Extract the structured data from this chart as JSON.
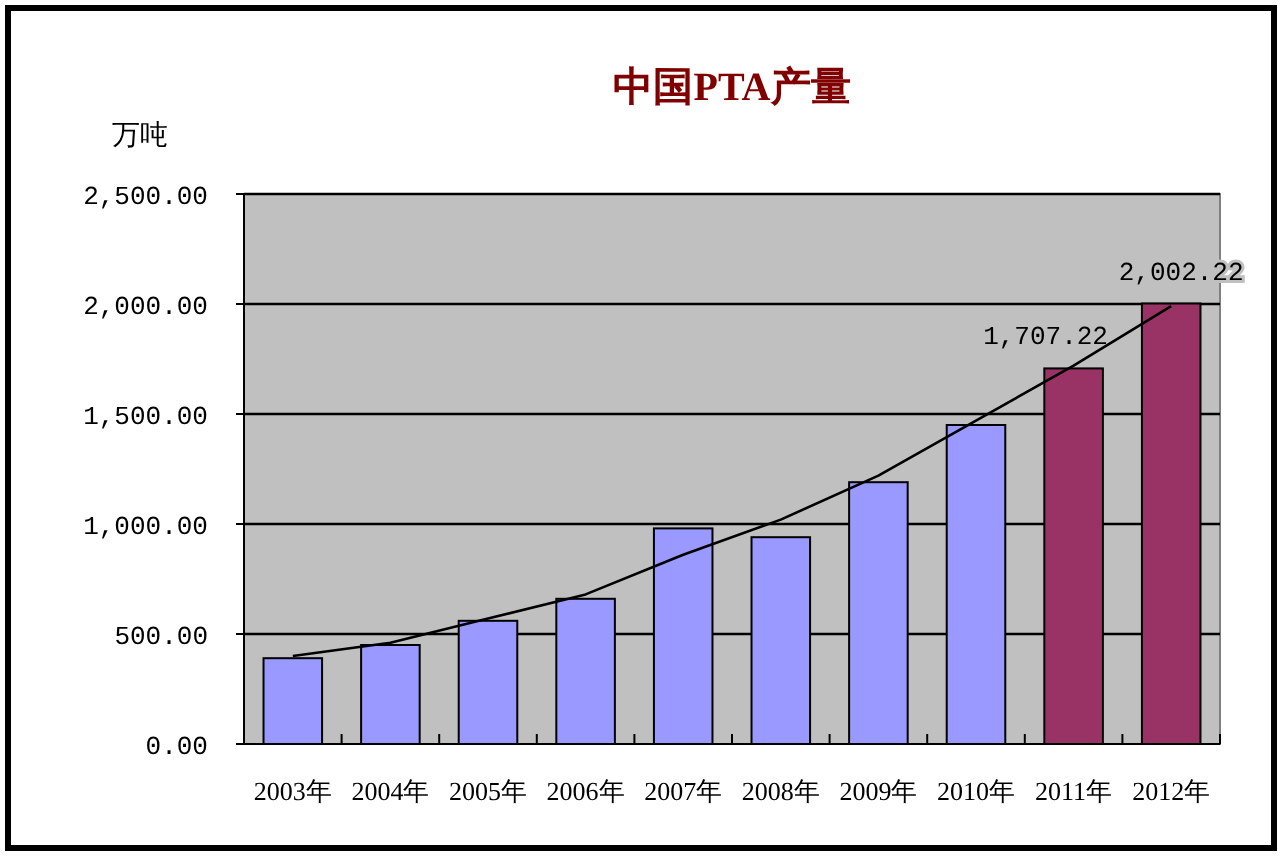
{
  "chart_data": {
    "type": "bar",
    "title": "中国PTA产量",
    "ylabel": "万吨",
    "categories": [
      "2003年",
      "2004年",
      "2005年",
      "2006年",
      "2007年",
      "2008年",
      "2009年",
      "2010年",
      "2011年",
      "2012年"
    ],
    "series": [
      {
        "colors": [
          "#9999ff",
          "#9999ff",
          "#9999ff",
          "#9999ff",
          "#9999ff",
          "#9999ff",
          "#9999ff",
          "#9999ff",
          "#993366",
          "#993366"
        ],
        "values": [
          390,
          450,
          560,
          660,
          980,
          940,
          1190,
          1450,
          1707.22,
          2002.22
        ],
        "value_labels": [
          null,
          null,
          null,
          null,
          null,
          null,
          null,
          null,
          "1,707.22",
          "2,002.22"
        ]
      },
      {
        "type": "line",
        "color": "#000000",
        "marker": "none",
        "values": [
          400,
          460,
          570,
          680,
          860,
          1020,
          1220,
          1470,
          1720,
          1990
        ]
      }
    ],
    "ylim": [
      0,
      2500
    ],
    "yticks": [
      {
        "value": 0,
        "label": "0.00"
      },
      {
        "value": 500,
        "label": "500.00"
      },
      {
        "value": 1000,
        "label": "1,000.00"
      },
      {
        "value": 1500,
        "label": "1,500.00"
      },
      {
        "value": 2000,
        "label": "2,000.00"
      },
      {
        "value": 2500,
        "label": "2,500.00"
      }
    ],
    "grid": "y"
  }
}
